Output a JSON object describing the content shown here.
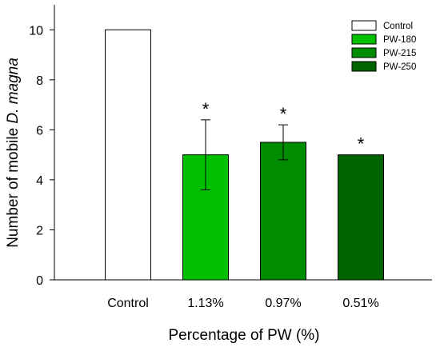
{
  "chart_data": {
    "type": "bar",
    "categories": [
      "Control",
      "1.13%",
      "0.97%",
      "0.51%"
    ],
    "values": [
      10,
      5,
      5.5,
      5
    ],
    "errors": [
      0,
      1.4,
      0.7,
      0
    ],
    "annotations": [
      "",
      "*",
      "*",
      "*"
    ],
    "colors": [
      "#ffffff",
      "#00c000",
      "#008c00",
      "#006400"
    ],
    "xlabel": "Percentage of PW (%)",
    "ylabel_prefix": "Number of mobile ",
    "ylabel_italic": "D. magna",
    "ylim": [
      0,
      11
    ],
    "yticks": [
      0,
      2,
      4,
      6,
      8,
      10
    ],
    "legend": [
      {
        "label": "Control",
        "color": "#ffffff"
      },
      {
        "label": "PW-180",
        "color": "#00c000"
      },
      {
        "label": "PW-215",
        "color": "#008c00"
      },
      {
        "label": "PW-250",
        "color": "#006400"
      }
    ],
    "legend_position": "top-right",
    "grid": false
  }
}
